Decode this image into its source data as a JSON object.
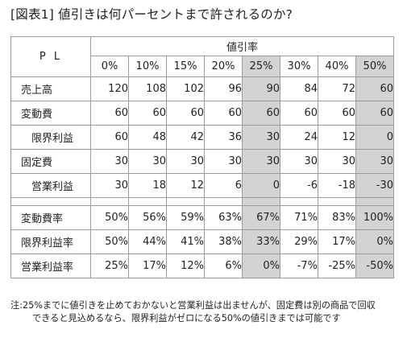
{
  "title": "[図表1] 値引きは何パーセントまで許されるのか?",
  "table": {
    "corner_label": "P L",
    "group_header": "値引率",
    "columns": [
      "0%",
      "10%",
      "15%",
      "20%",
      "25%",
      "30%",
      "40%",
      "50%"
    ],
    "highlighted_columns": [
      "25%",
      "50%"
    ],
    "rows_top": [
      {
        "label": "売上高",
        "indent": false,
        "values": [
          "120",
          "108",
          "102",
          "96",
          "90",
          "84",
          "72",
          "60"
        ]
      },
      {
        "label": "変動費",
        "indent": false,
        "values": [
          "60",
          "60",
          "60",
          "60",
          "60",
          "60",
          "60",
          "60"
        ]
      },
      {
        "label": "限界利益",
        "indent": true,
        "values": [
          "60",
          "48",
          "42",
          "36",
          "30",
          "24",
          "12",
          "0"
        ]
      },
      {
        "label": "固定費",
        "indent": false,
        "values": [
          "30",
          "30",
          "30",
          "30",
          "30",
          "30",
          "30",
          "30"
        ]
      },
      {
        "label": "営業利益",
        "indent": true,
        "values": [
          "30",
          "18",
          "12",
          "6",
          "0",
          "-6",
          "-18",
          "-30"
        ]
      }
    ],
    "rows_bottom": [
      {
        "label": "変動費率",
        "indent": false,
        "values": [
          "50%",
          "56%",
          "59%",
          "63%",
          "67%",
          "71%",
          "83%",
          "100%"
        ]
      },
      {
        "label": "限界利益率",
        "indent": false,
        "values": [
          "50%",
          "44%",
          "41%",
          "38%",
          "33%",
          "29%",
          "17%",
          "0%"
        ]
      },
      {
        "label": "営業利益率",
        "indent": false,
        "values": [
          "25%",
          "17%",
          "12%",
          "6%",
          "0%",
          "-7%",
          "-25%",
          "-50%"
        ]
      }
    ],
    "shade_color": "#d3d3d3"
  },
  "note": {
    "line1": "注:25%までに値引きを止めておかないと営業利益は出ませんが、固定費は別の商品で回収",
    "line2": "できると見込めるなら、限界利益がゼロになる50%の値引きまでは可能です"
  }
}
